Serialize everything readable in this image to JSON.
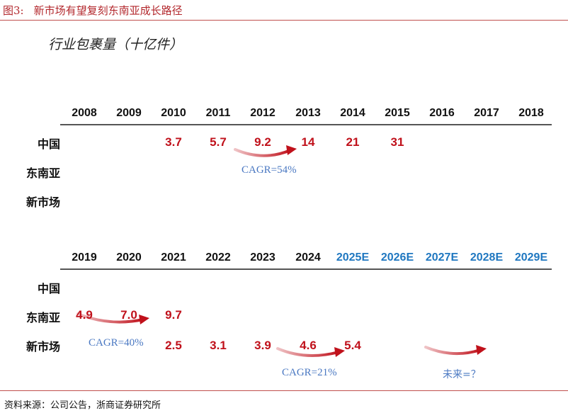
{
  "caption": {
    "number": "图3:",
    "title": "新市场有望复刻东南亚成长路径"
  },
  "subtitle": "行业包裹量（十亿件）",
  "table1": {
    "years": [
      "2008",
      "2009",
      "2010",
      "2011",
      "2012",
      "2013",
      "2014",
      "2015",
      "2016",
      "2017",
      "2018"
    ],
    "row_labels": [
      "中国",
      "东南亚",
      "新市场"
    ],
    "china": [
      "",
      "",
      "3.7",
      "5.7",
      "9.2",
      "14",
      "21",
      "31",
      "",
      "",
      ""
    ],
    "cagr": "CAGR=54%"
  },
  "table2": {
    "years": [
      "2019",
      "2020",
      "2021",
      "2022",
      "2023",
      "2024",
      "2025E",
      "2026E",
      "2027E",
      "2028E",
      "2029E"
    ],
    "estimate_color": "#1f77c0",
    "row_labels": [
      "中国",
      "东南亚",
      "新市场"
    ],
    "southeast_asia": [
      "4.9",
      "7.0",
      "9.7",
      "",
      "",
      "",
      "",
      "",
      "",
      "",
      ""
    ],
    "new_market": [
      "",
      "",
      "2.5",
      "3.1",
      "3.9",
      "4.6",
      "5.4",
      "",
      "",
      "",
      ""
    ],
    "cagr_sea": "CAGR=40%",
    "cagr_new": "CAGR=21%",
    "future_label": "未来=？"
  },
  "source": "资料来源：公司公告，浙商证券研究所",
  "colors": {
    "value_red": "#c0111b",
    "cagr_blue": "#4a78c2",
    "caption_red": "#b3282d"
  }
}
